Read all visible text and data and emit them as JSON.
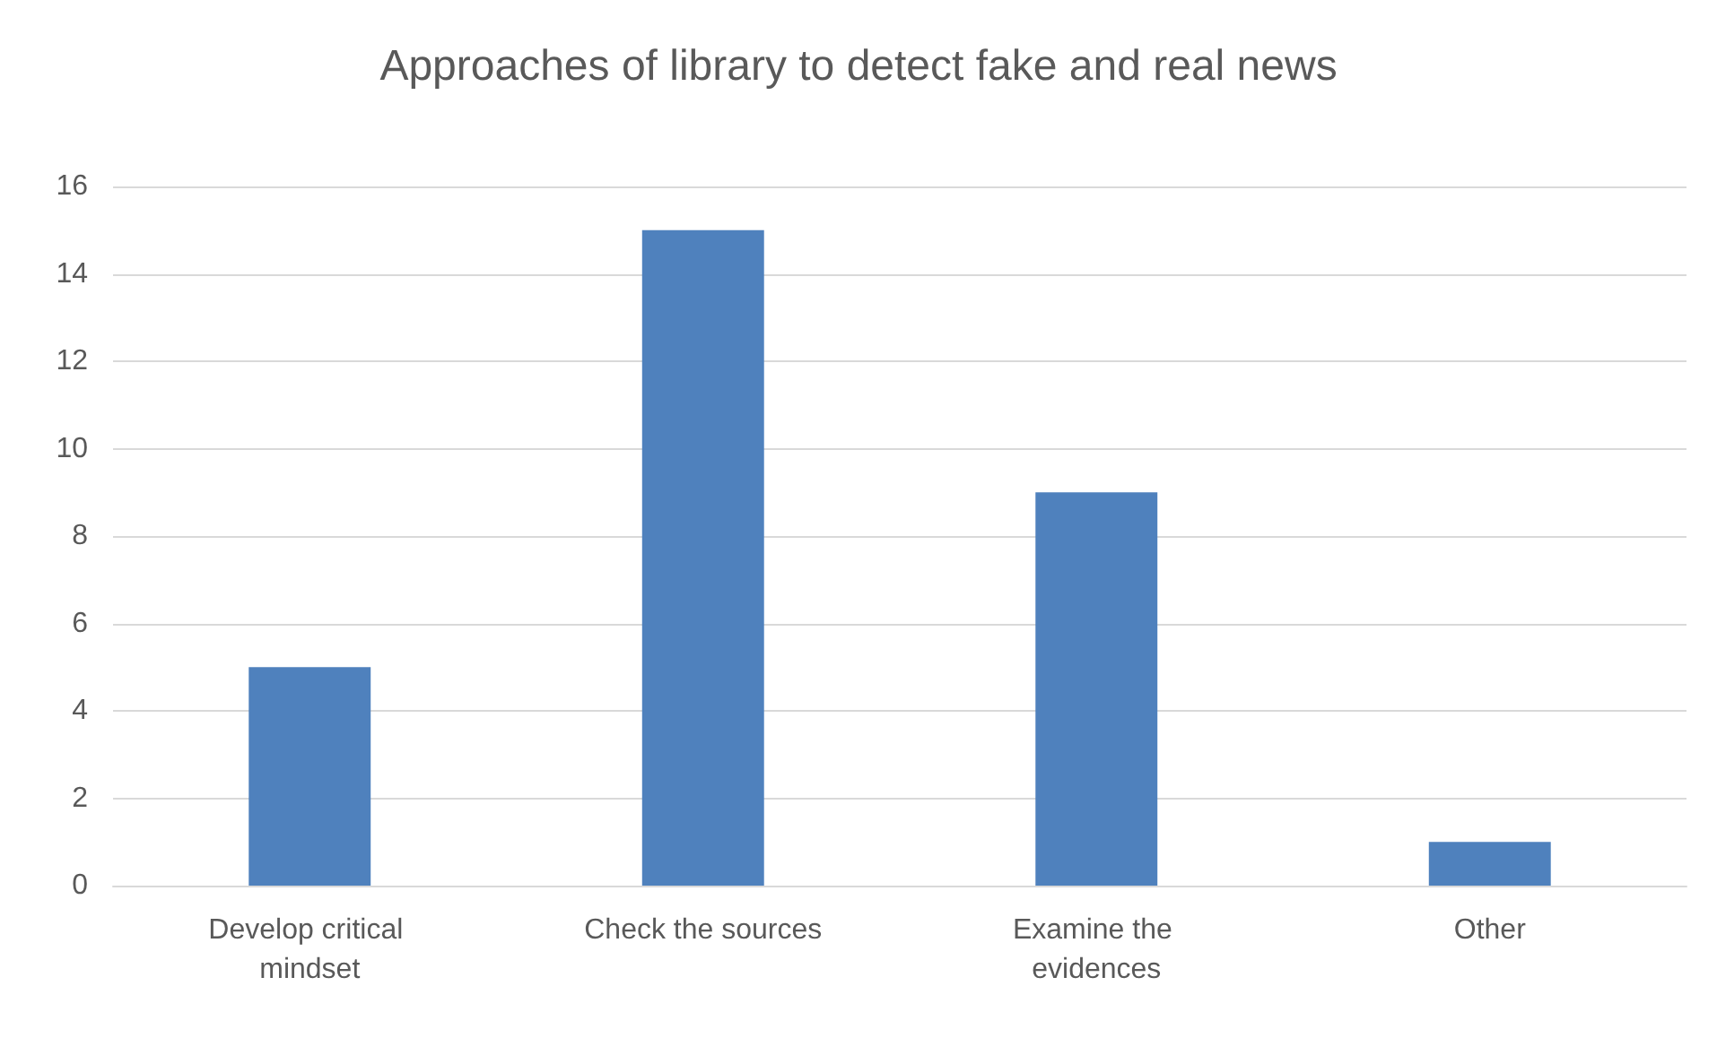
{
  "chart_data": {
    "type": "bar",
    "title": "Approaches of library to detect fake and real news",
    "categories": [
      "Develop critical mindset",
      "Check the sources",
      "Examine the evidences",
      "Other"
    ],
    "values": [
      5,
      15,
      9,
      1
    ],
    "color": "#4f81bd",
    "ylim": [
      0,
      16
    ],
    "yticks": [
      0,
      2,
      4,
      6,
      8,
      10,
      12,
      14,
      16
    ],
    "grid": "y"
  }
}
